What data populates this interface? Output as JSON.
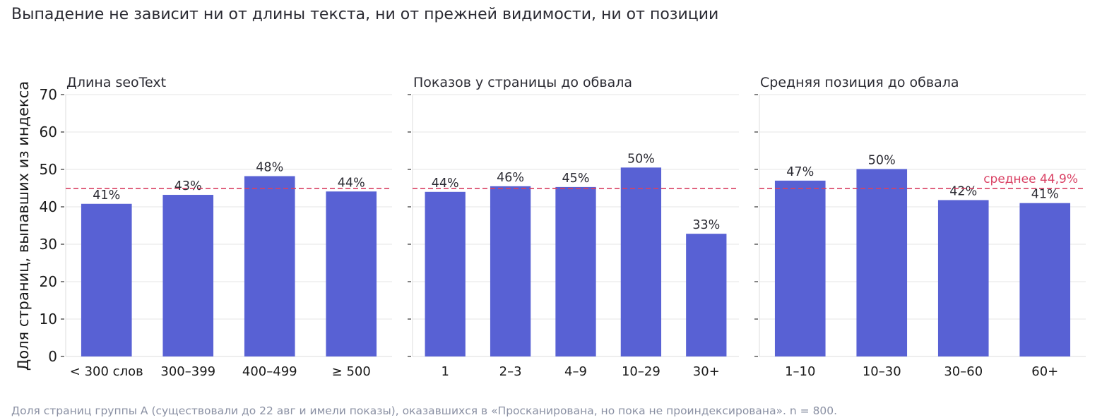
{
  "title": "Выпадение не зависит ни от длины текста, ни от прежней видимости, ни от позиции",
  "footnote": "Доля страниц группы А (существовали до 22 авг и имели показы), оказавшихся в «Просканирована, но пока не проиндексирована». n = 800.",
  "colors": {
    "bar": "#5861d4",
    "mean_line": "#d94063",
    "grid": "#e6e6e6",
    "text": "#2b2b33",
    "footnote": "#8a90a3"
  },
  "chart_data": [
    {
      "type": "bar",
      "title": "Длина seoText",
      "ylabel": "Доля страниц, выпавших из индекса",
      "ylim": [
        0,
        70
      ],
      "yticks": [
        0,
        10,
        20,
        30,
        40,
        50,
        60,
        70
      ],
      "grid": true,
      "categories": [
        "< 300 слов",
        "300–399",
        "400–499",
        "≥ 500"
      ],
      "values": [
        40.8,
        43.2,
        48.2,
        44.1
      ],
      "data_labels": [
        "41%",
        "43%",
        "48%",
        "44%"
      ],
      "mean_line": {
        "value": 44.9
      }
    },
    {
      "type": "bar",
      "title": "Показов у страницы до обвала",
      "ylim": [
        0,
        70
      ],
      "grid": true,
      "categories": [
        "1",
        "2–3",
        "4–9",
        "10–29",
        "30+"
      ],
      "values": [
        44.0,
        45.5,
        45.3,
        50.5,
        32.8
      ],
      "data_labels": [
        "44%",
        "46%",
        "45%",
        "50%",
        "33%"
      ],
      "mean_line": {
        "value": 44.9
      }
    },
    {
      "type": "bar",
      "title": "Средняя позиция до обвала",
      "ylim": [
        0,
        70
      ],
      "grid": true,
      "categories": [
        "1–10",
        "10–30",
        "30–60",
        "60+"
      ],
      "values": [
        47.0,
        50.1,
        41.8,
        41.0
      ],
      "data_labels": [
        "47%",
        "50%",
        "42%",
        "41%"
      ],
      "mean_line": {
        "value": 44.9,
        "label": "среднее 44,9%"
      }
    }
  ]
}
